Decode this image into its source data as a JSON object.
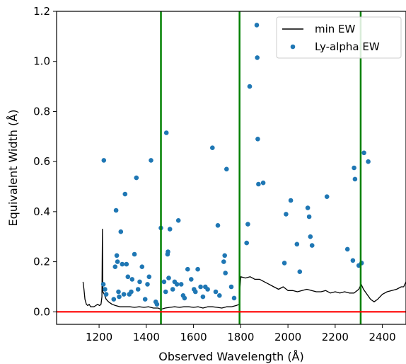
{
  "chart_data": {
    "type": "scatter",
    "title": "",
    "xlabel": "Observed Wavelength (Å)",
    "ylabel": "Equivalent Width (Å)",
    "xlim": [
      1020,
      2500
    ],
    "ylim": [
      -0.05,
      1.2
    ],
    "x_ticks": [
      1200,
      1400,
      1600,
      1800,
      2000,
      2200,
      2400
    ],
    "y_ticks": [
      0.0,
      0.2,
      0.4,
      0.6,
      0.8,
      1.0,
      1.2
    ],
    "x_tick_labels": [
      "1200",
      "1400",
      "1600",
      "1800",
      "2000",
      "2200",
      "2400"
    ],
    "y_tick_labels": [
      "0.0",
      "0.2",
      "0.4",
      "0.6",
      "0.8",
      "1.0",
      "1.2"
    ],
    "legend_position": "top-right",
    "grid": false,
    "colors": {
      "min_ew": "#000000",
      "lya": "#1f77b4",
      "vline": "#008000",
      "hline": "#ff0000"
    },
    "vertical_lines": [
      1462,
      1795,
      2308
    ],
    "horizontal_line": 0.0,
    "series": [
      {
        "name": "min EW",
        "kind": "line",
        "x": [
          1132,
          1136,
          1140,
          1146,
          1152,
          1158,
          1164,
          1170,
          1178,
          1186,
          1194,
          1202,
          1208,
          1212,
          1214,
          1216,
          1222,
          1230,
          1240,
          1255,
          1270,
          1290,
          1310,
          1330,
          1350,
          1370,
          1390,
          1410,
          1430,
          1450,
          1462,
          1480,
          1500,
          1520,
          1540,
          1560,
          1580,
          1600,
          1620,
          1640,
          1660,
          1680,
          1700,
          1720,
          1740,
          1760,
          1780,
          1795,
          1797,
          1800,
          1820,
          1840,
          1860,
          1880,
          1900,
          1920,
          1940,
          1960,
          1980,
          2000,
          2020,
          2040,
          2060,
          2080,
          2100,
          2120,
          2140,
          2160,
          2180,
          2200,
          2220,
          2240,
          2260,
          2280,
          2300,
          2310,
          2320,
          2335,
          2350,
          2365,
          2380,
          2400,
          2420,
          2440,
          2460,
          2480,
          2490,
          2500
        ],
        "y": [
          0.12,
          0.09,
          0.05,
          0.03,
          0.025,
          0.03,
          0.02,
          0.02,
          0.02,
          0.025,
          0.03,
          0.025,
          0.03,
          0.06,
          0.33,
          0.08,
          0.07,
          0.05,
          0.04,
          0.03,
          0.025,
          0.02,
          0.02,
          0.02,
          0.018,
          0.02,
          0.018,
          0.02,
          0.015,
          0.015,
          0.01,
          0.015,
          0.018,
          0.02,
          0.018,
          0.02,
          0.02,
          0.018,
          0.02,
          0.015,
          0.02,
          0.02,
          0.018,
          0.015,
          0.02,
          0.02,
          0.025,
          0.03,
          0.1,
          0.14,
          0.135,
          0.14,
          0.13,
          0.13,
          0.12,
          0.11,
          0.1,
          0.09,
          0.1,
          0.085,
          0.085,
          0.08,
          0.085,
          0.09,
          0.085,
          0.08,
          0.08,
          0.085,
          0.075,
          0.08,
          0.075,
          0.08,
          0.075,
          0.075,
          0.09,
          0.11,
          0.09,
          0.07,
          0.05,
          0.04,
          0.05,
          0.07,
          0.08,
          0.085,
          0.09,
          0.1,
          0.1,
          0.12
        ]
      },
      {
        "name": "Ly-alpha EW",
        "kind": "scatter",
        "x": [
          1220,
          1218,
          1225,
          1230,
          1262,
          1268,
          1272,
          1275,
          1278,
          1282,
          1285,
          1292,
          1298,
          1305,
          1310,
          1316,
          1322,
          1328,
          1336,
          1340,
          1350,
          1358,
          1365,
          1372,
          1382,
          1395,
          1405,
          1412,
          1420,
          1440,
          1445,
          1462,
          1475,
          1482,
          1485,
          1490,
          1492,
          1495,
          1500,
          1512,
          1520,
          1530,
          1536,
          1548,
          1556,
          1562,
          1575,
          1590,
          1602,
          1608,
          1618,
          1630,
          1640,
          1650,
          1660,
          1680,
          1694,
          1703,
          1710,
          1728,
          1732,
          1735,
          1740,
          1760,
          1772,
          1825,
          1830,
          1838,
          1868,
          1870,
          1872,
          1875,
          1895,
          1985,
          1992,
          2012,
          2038,
          2050,
          2084,
          2090,
          2095,
          2102,
          2165,
          2252,
          2275,
          2280,
          2284,
          2300,
          2312,
          2322,
          2340
        ],
        "y": [
          0.605,
          0.11,
          0.09,
          0.07,
          0.05,
          0.18,
          0.405,
          0.225,
          0.2,
          0.08,
          0.06,
          0.32,
          0.19,
          0.07,
          0.47,
          0.19,
          0.14,
          0.07,
          0.08,
          0.13,
          0.23,
          0.535,
          0.09,
          0.12,
          0.18,
          0.05,
          0.11,
          0.14,
          0.605,
          0.04,
          0.03,
          0.335,
          0.12,
          0.08,
          0.715,
          0.23,
          0.24,
          0.135,
          0.33,
          0.09,
          0.12,
          0.11,
          0.365,
          0.11,
          0.065,
          0.055,
          0.17,
          0.13,
          0.09,
          0.08,
          0.17,
          0.1,
          0.06,
          0.1,
          0.09,
          0.655,
          0.08,
          0.345,
          0.065,
          0.2,
          0.225,
          0.155,
          0.57,
          0.1,
          0.055,
          0.275,
          0.35,
          0.9,
          1.145,
          1.015,
          0.69,
          0.51,
          0.515,
          0.195,
          0.39,
          0.445,
          0.27,
          0.16,
          0.415,
          0.38,
          0.3,
          0.265,
          0.46,
          0.25,
          0.205,
          0.575,
          0.53,
          0.185,
          0.195,
          0.635,
          0.6
        ]
      }
    ]
  }
}
